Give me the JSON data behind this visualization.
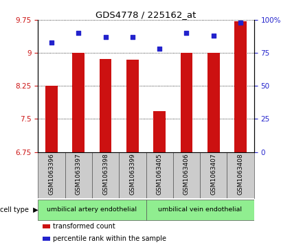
{
  "title": "GDS4778 / 225162_at",
  "samples": [
    "GSM1063396",
    "GSM1063397",
    "GSM1063398",
    "GSM1063399",
    "GSM1063405",
    "GSM1063406",
    "GSM1063407",
    "GSM1063408"
  ],
  "bar_values": [
    8.25,
    9.01,
    8.87,
    8.85,
    7.68,
    9.01,
    9.01,
    9.72
  ],
  "percentile_values": [
    83,
    90,
    87,
    87,
    78,
    90,
    88,
    98
  ],
  "bar_color": "#cc1111",
  "dot_color": "#2222cc",
  "ylim_left": [
    6.75,
    9.75
  ],
  "ylim_right": [
    0,
    100
  ],
  "yticks_left": [
    6.75,
    7.5,
    8.25,
    9.0,
    9.75
  ],
  "yticks_right": [
    0,
    25,
    50,
    75,
    100
  ],
  "ytick_labels_left": [
    "6.75",
    "7.5",
    "8.25",
    "9",
    "9.75"
  ],
  "ytick_labels_right": [
    "0",
    "25",
    "50",
    "75",
    "100%"
  ],
  "grid_values": [
    7.5,
    8.25,
    9.0,
    9.75
  ],
  "legend_items": [
    {
      "label": "transformed count",
      "color": "#cc1111"
    },
    {
      "label": "percentile rank within the sample",
      "color": "#2222cc"
    }
  ],
  "bar_width": 0.45,
  "background_plot": "#ffffff",
  "background_xtick": "#cccccc",
  "background_celltype": "#90ee90",
  "cell_type_groups": [
    {
      "label": "umbilical artery endothelial",
      "start": 0,
      "end": 3
    },
    {
      "label": "umbilical vein endothelial",
      "start": 4,
      "end": 7
    }
  ]
}
